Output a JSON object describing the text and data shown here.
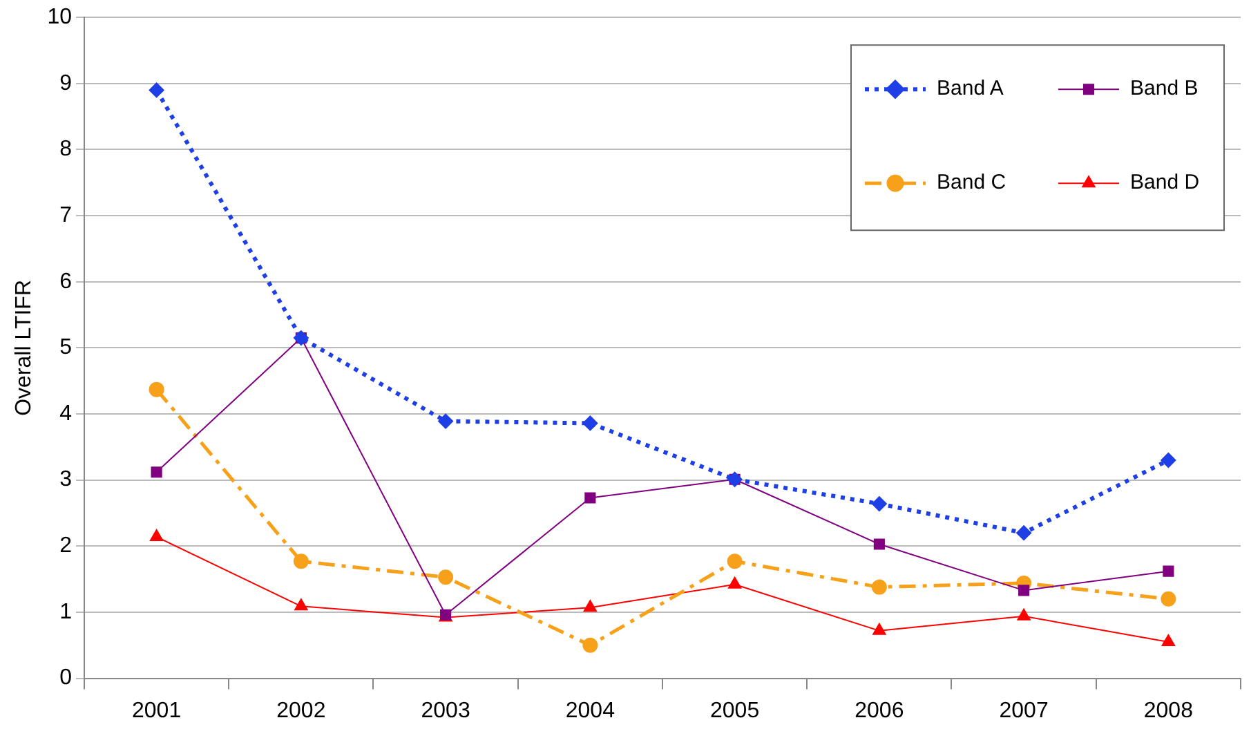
{
  "chart_data": {
    "type": "line",
    "ylabel": "Overall LTIFR",
    "categories": [
      "2001",
      "2002",
      "2003",
      "2004",
      "2005",
      "2006",
      "2007",
      "2008"
    ],
    "series": [
      {
        "name": "Band A",
        "color": "#1f3fe6",
        "line_style": "dotted",
        "marker": "diamond",
        "values": [
          8.9,
          5.15,
          3.89,
          3.86,
          3.01,
          2.64,
          2.2,
          3.3
        ]
      },
      {
        "name": "Band B",
        "color": "#800080",
        "line_style": "solid",
        "marker": "square",
        "values": [
          3.12,
          5.15,
          0.96,
          2.73,
          3.01,
          2.03,
          1.33,
          1.62
        ]
      },
      {
        "name": "Band C",
        "color": "#f7a11a",
        "line_style": "dashed",
        "marker": "circle",
        "values": [
          4.37,
          1.77,
          1.53,
          0.5,
          1.77,
          1.38,
          1.44,
          1.2
        ]
      },
      {
        "name": "Band D",
        "color": "#ff0000",
        "line_style": "solid",
        "marker": "triangle",
        "values": [
          2.14,
          1.09,
          0.92,
          1.07,
          1.42,
          0.72,
          0.94,
          0.55
        ]
      }
    ],
    "ylim": [
      0,
      10
    ],
    "yticks": [
      0,
      1,
      2,
      3,
      4,
      5,
      6,
      7,
      8,
      9,
      10
    ],
    "grid": "y",
    "legend": "top right"
  }
}
